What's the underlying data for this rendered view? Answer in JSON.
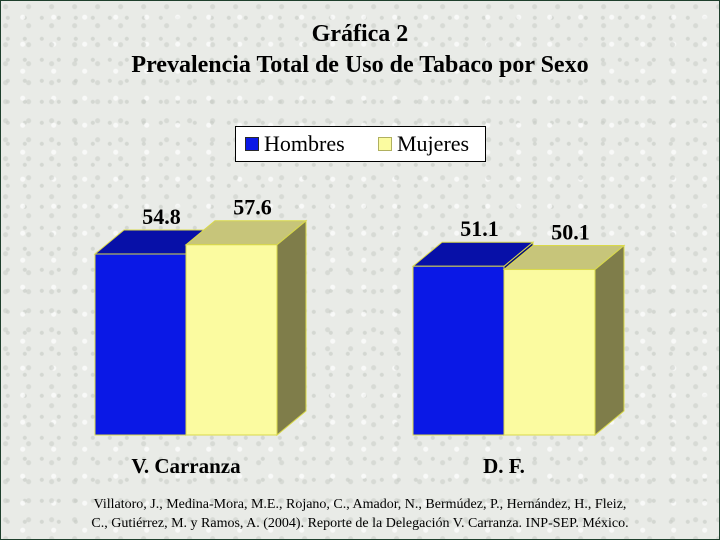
{
  "title": {
    "line1": "Gráfica 2",
    "line2": "Prevalencia Total de Uso de Tabaco por Sexo"
  },
  "legend": {
    "items": [
      {
        "label": "Hombres",
        "color": "#0a18e6"
      },
      {
        "label": "Mujeres",
        "color": "#fbfba0"
      }
    ]
  },
  "source": {
    "line1": "Villatoro, J., Medina-Mora, M.E., Rojano, C., Amador, N., Bermúdez, P., Hernández, H., Fleiz,",
    "line2": "C., Gutiérrez, M. y Ramos, A. (2004). Reporte de la Delegación V. Carranza. INP-SEP. México."
  },
  "colors": {
    "hombres_front": "#0a18e6",
    "hombres_top": "#0710a8",
    "mujeres_front": "#fbfba0",
    "mujeres_top": "#c7c57a",
    "mujeres_side": "#7f7d4a",
    "edge": "#d9d94a"
  },
  "chart_data": {
    "type": "bar",
    "categories": [
      "V. Carranza",
      "D. F."
    ],
    "series": [
      {
        "name": "Hombres",
        "values": [
          54.8,
          51.1
        ]
      },
      {
        "name": "Mujeres",
        "values": [
          57.6,
          50.1
        ]
      }
    ],
    "data_labels": [
      [
        "54.8",
        "57.6"
      ],
      [
        "51.1",
        "50.1"
      ]
    ],
    "legend_position": "top-center",
    "grid": false,
    "ylim": [
      0,
      65
    ],
    "three_d": true
  }
}
